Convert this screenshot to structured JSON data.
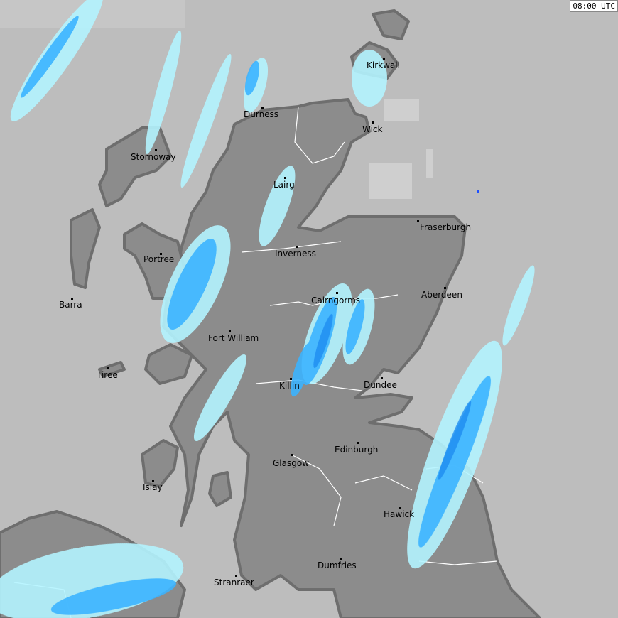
{
  "timestamp": "08:00 UTC",
  "colors": {
    "sea": "#bdbdbd",
    "land": "#8c8c8c",
    "coastline": "#6e6e6e",
    "borders": "#ffffff",
    "radar_light": "#b4f4ff",
    "radar_medium": "#3cb4ff",
    "radar_heavy": "#1e8cf0",
    "radar_clutter": "#d2d2d2"
  },
  "cities": [
    {
      "name": "Kirkwall"
    },
    {
      "name": "Durness"
    },
    {
      "name": "Wick"
    },
    {
      "name": "Stornoway"
    },
    {
      "name": "Lairg"
    },
    {
      "name": "Fraserburgh"
    },
    {
      "name": "Inverness"
    },
    {
      "name": "Portree"
    },
    {
      "name": "Aberdeen"
    },
    {
      "name": "Cairngorms"
    },
    {
      "name": "Barra"
    },
    {
      "name": "Fort William"
    },
    {
      "name": "Tiree"
    },
    {
      "name": "Killin"
    },
    {
      "name": "Dundee"
    },
    {
      "name": "Edinburgh"
    },
    {
      "name": "Glasgow"
    },
    {
      "name": "Islay"
    },
    {
      "name": "Hawick"
    },
    {
      "name": "Dumfries"
    },
    {
      "name": "Stranraer"
    }
  ]
}
